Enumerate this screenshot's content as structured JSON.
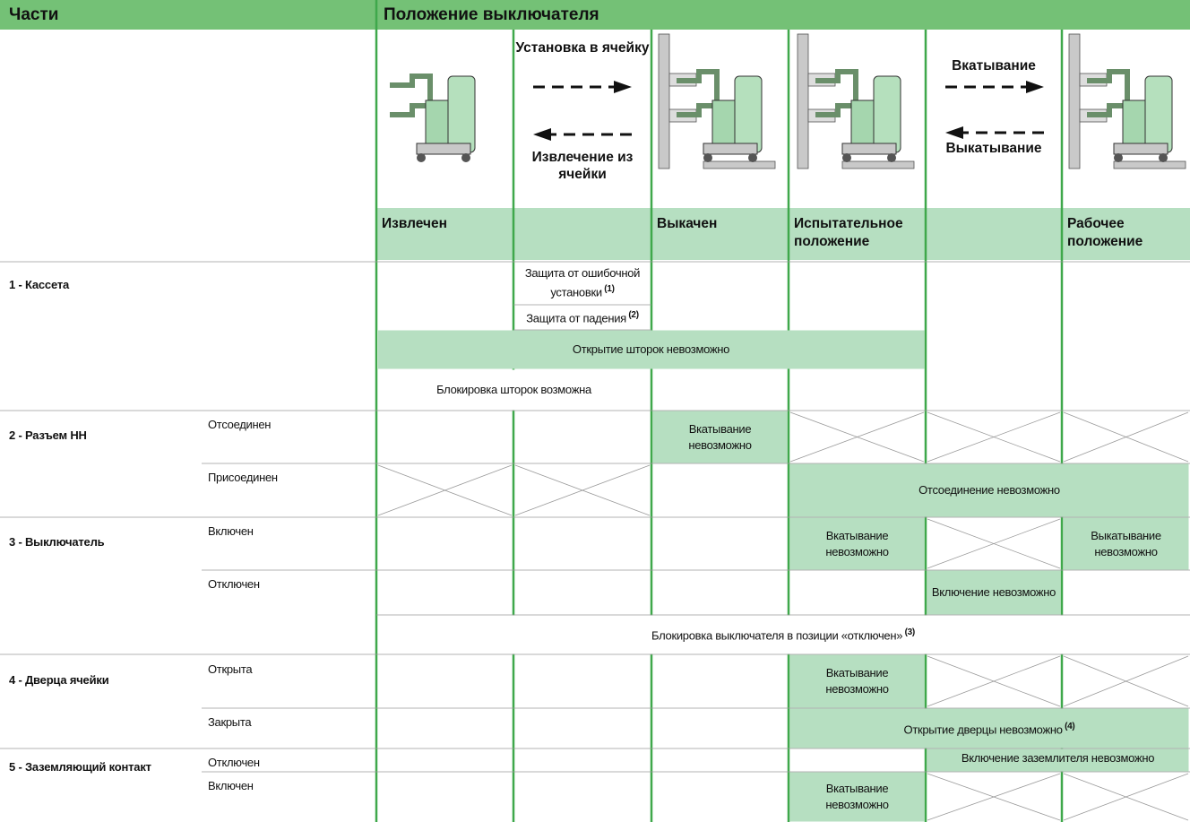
{
  "header": {
    "parts": "Части",
    "position": "Положение выключателя"
  },
  "positions": [
    "Извлечен",
    "Выкачен",
    "Испытательное положение",
    "Рабочее положение"
  ],
  "transitions": [
    {
      "forward": "Установка в ячейку",
      "backward": "Извлечение из ячейки"
    },
    {
      "forward": "Вкатывание",
      "backward": "Выкатывание"
    }
  ],
  "parts": [
    {
      "label": "1 - Кассета",
      "states": []
    },
    {
      "label": "2 - Разъем НН",
      "states": [
        "Отсоединен",
        "Присоединен"
      ]
    },
    {
      "label": "3 - Выключатель",
      "states": [
        "Включен",
        "Отключен"
      ]
    },
    {
      "label": "4 - Дверца ячейки",
      "states": [
        "Открыта",
        "Закрыта"
      ]
    },
    {
      "label": "5 - Заземляющий контакт",
      "states": [
        "Отключен",
        "Включен"
      ]
    }
  ],
  "cells": [
    {
      "text": "Защита от ошибочной установки",
      "note": "(1)"
    },
    {
      "text": "Защита от падения",
      "note": "(2)"
    },
    {
      "text": "Открытие шторок невозможно"
    },
    {
      "text": "Блокировка шторок возможна"
    },
    {
      "text": "Вкатывание невозможно"
    },
    {
      "text": "Отсоединение невозможно"
    },
    {
      "text": "Вкатывание невозможно"
    },
    {
      "text": "Выкатывание невозможно"
    },
    {
      "text": "Включение невозможно"
    },
    {
      "text": "Блокировка выключателя в позиции «отключен»",
      "note": "(3)"
    },
    {
      "text": "Вкатывание невозможно"
    },
    {
      "text": "Открытие дверцы невозможно",
      "note": "(4)"
    },
    {
      "text": "Включение заземлителя невозможно"
    },
    {
      "text": "Вкатывание невозможно"
    }
  ]
}
